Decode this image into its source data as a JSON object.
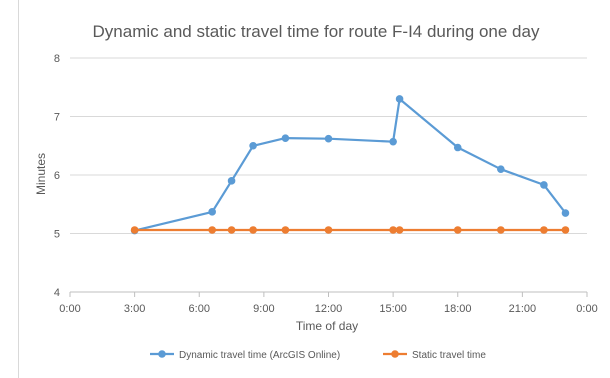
{
  "chart_data": {
    "type": "line",
    "title": "Dynamic and static travel time for route F-I4 during one day",
    "xlabel": "Time of day",
    "ylabel": "Minutes",
    "xlim": [
      0,
      24
    ],
    "ylim": [
      4,
      8
    ],
    "x_ticks": [
      0,
      3,
      6,
      9,
      12,
      15,
      18,
      21,
      24
    ],
    "x_tick_labels": [
      "0:00",
      "3:00",
      "6:00",
      "9:00",
      "12:00",
      "15:00",
      "18:00",
      "21:00",
      "0:00"
    ],
    "y_ticks": [
      4,
      5,
      6,
      7,
      8
    ],
    "y_tick_labels": [
      "4",
      "5",
      "6",
      "7",
      "8"
    ],
    "grid": "horizontal",
    "legend_position": "bottom",
    "series": [
      {
        "name": "Dynamic travel time (ArcGIS Online)",
        "color": "#5b9bd5",
        "points": [
          [
            3.0,
            5.05
          ],
          [
            6.6,
            5.37
          ],
          [
            7.5,
            5.9
          ],
          [
            8.5,
            6.5
          ],
          [
            10.0,
            6.63
          ],
          [
            12.0,
            6.62
          ],
          [
            15.0,
            6.57
          ],
          [
            15.3,
            7.3
          ],
          [
            18.0,
            6.47
          ],
          [
            20.0,
            6.1
          ],
          [
            22.0,
            5.83
          ],
          [
            23.0,
            5.35
          ]
        ]
      },
      {
        "name": "Static travel time",
        "color": "#ed7d31",
        "points": [
          [
            3.0,
            5.06
          ],
          [
            6.6,
            5.06
          ],
          [
            7.5,
            5.06
          ],
          [
            8.5,
            5.06
          ],
          [
            10.0,
            5.06
          ],
          [
            12.0,
            5.06
          ],
          [
            15.0,
            5.06
          ],
          [
            15.3,
            5.06
          ],
          [
            18.0,
            5.06
          ],
          [
            20.0,
            5.06
          ],
          [
            22.0,
            5.06
          ],
          [
            23.0,
            5.06
          ]
        ]
      }
    ]
  }
}
